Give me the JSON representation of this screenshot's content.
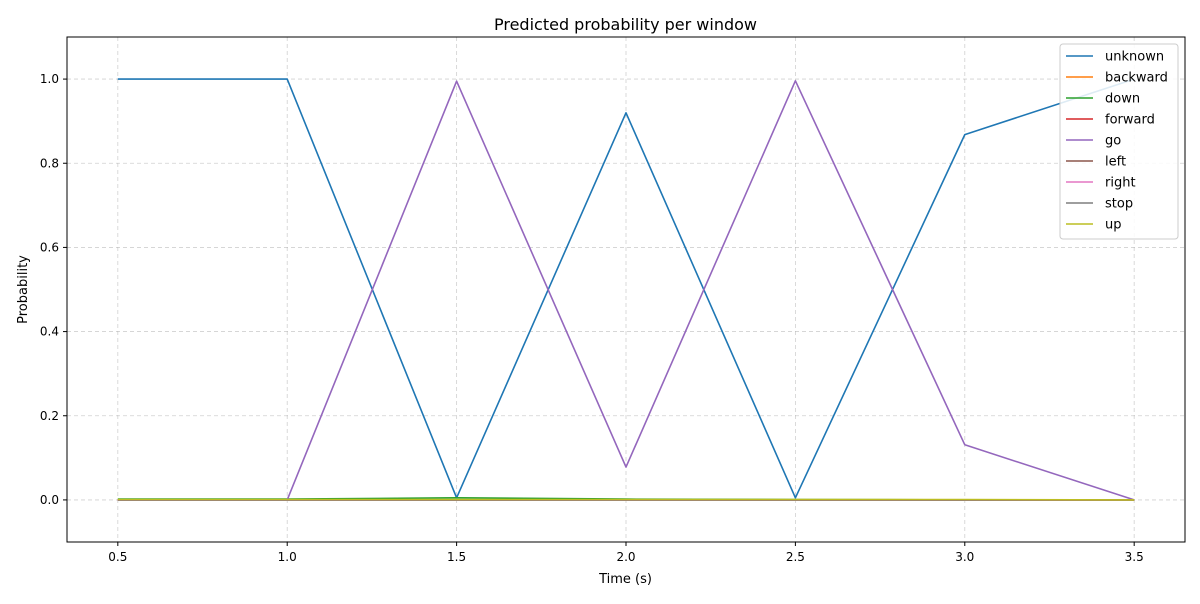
{
  "chart_data": {
    "type": "line",
    "title": "Predicted probability per window",
    "xlabel": "Time (s)",
    "ylabel": "Probability",
    "xlim": [
      0.35,
      3.65
    ],
    "ylim": [
      -0.1,
      1.1
    ],
    "xticks": [
      0.5,
      1.0,
      1.5,
      2.0,
      2.5,
      3.0,
      3.5
    ],
    "xtick_labels": [
      "0.5",
      "1.0",
      "1.5",
      "2.0",
      "2.5",
      "3.0",
      "3.5"
    ],
    "yticks": [
      0.0,
      0.2,
      0.4,
      0.6,
      0.8,
      1.0
    ],
    "ytick_labels": [
      "0.0",
      "0.2",
      "0.4",
      "0.6",
      "0.8",
      "1.0"
    ],
    "grid": true,
    "legend_position": "top-right",
    "x": [
      0.5,
      1.0,
      1.5,
      2.0,
      2.5,
      3.0,
      3.5
    ],
    "series": [
      {
        "name": "unknown",
        "color": "#1f77b4",
        "values": [
          1.0,
          1.0,
          0.005,
          0.92,
          0.005,
          0.868,
          1.0
        ]
      },
      {
        "name": "backward",
        "color": "#ff7f0e",
        "values": [
          0.0,
          0.0,
          0.0,
          0.0,
          0.0,
          0.0,
          0.0
        ]
      },
      {
        "name": "down",
        "color": "#2ca02c",
        "values": [
          0.002,
          0.002,
          0.005,
          0.002,
          0.001,
          0.0,
          0.0
        ]
      },
      {
        "name": "forward",
        "color": "#d62728",
        "values": [
          0.0,
          0.0,
          0.0,
          0.0,
          0.0,
          0.0,
          0.0
        ]
      },
      {
        "name": "go",
        "color": "#9467bd",
        "values": [
          0.0,
          0.0,
          0.995,
          0.078,
          0.996,
          0.131,
          0.0
        ]
      },
      {
        "name": "left",
        "color": "#8c564b",
        "values": [
          0.0,
          0.0,
          0.0,
          0.0,
          0.0,
          0.0,
          0.0
        ]
      },
      {
        "name": "right",
        "color": "#e377c2",
        "values": [
          0.0,
          0.0,
          0.0,
          0.0,
          0.0,
          0.0,
          0.0
        ]
      },
      {
        "name": "stop",
        "color": "#7f7f7f",
        "values": [
          0.0,
          0.0,
          0.0,
          0.0,
          0.0,
          0.0,
          0.0
        ]
      },
      {
        "name": "up",
        "color": "#bcbd22",
        "values": [
          0.001,
          0.001,
          0.001,
          0.001,
          0.001,
          0.001,
          0.0
        ]
      }
    ]
  }
}
